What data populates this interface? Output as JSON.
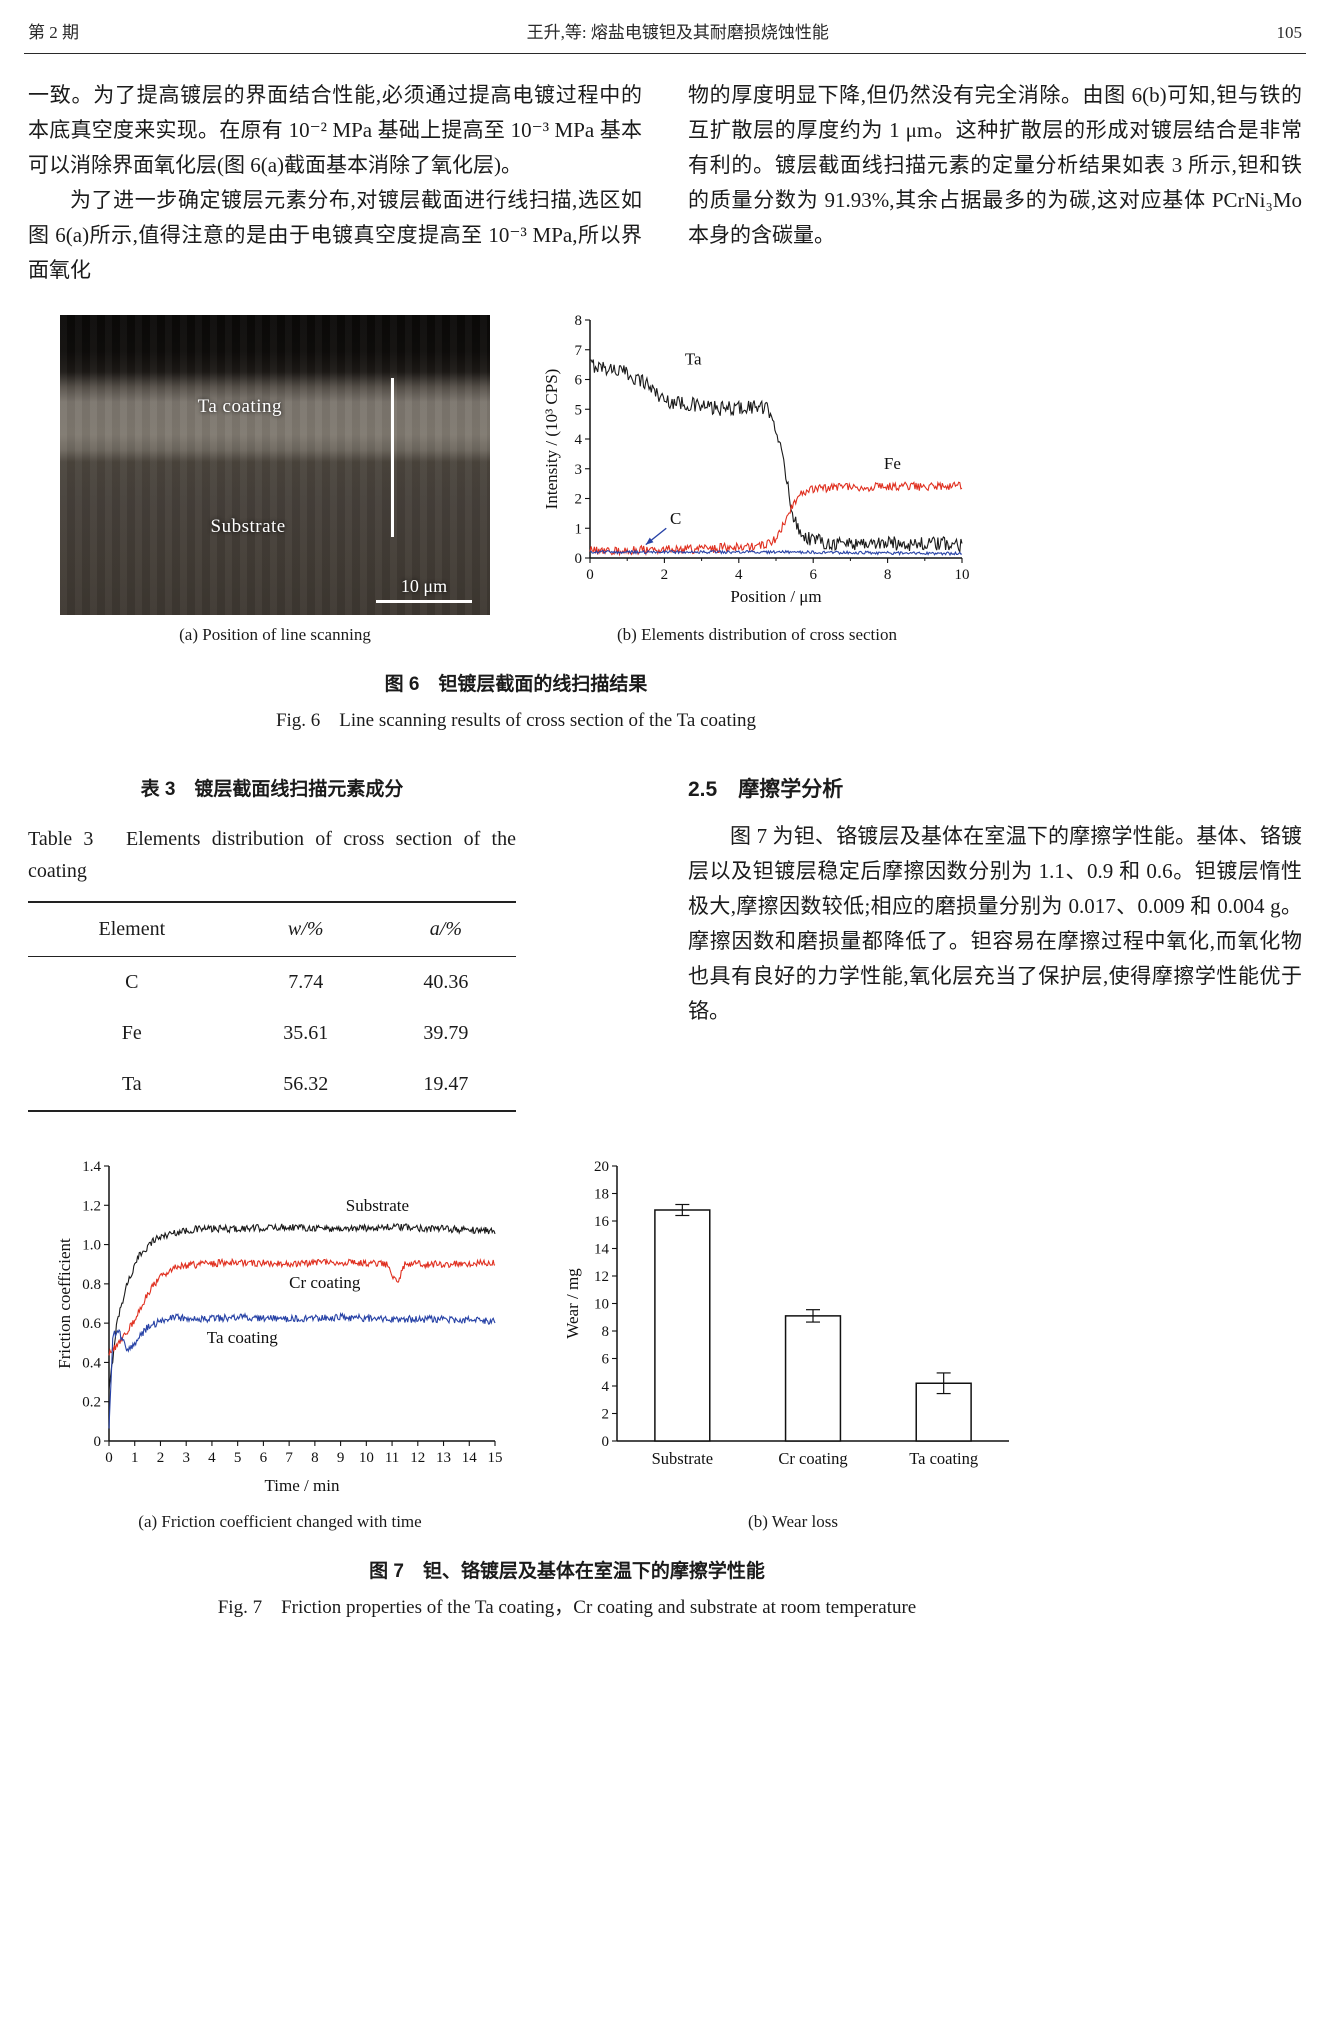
{
  "header": {
    "issue": "第 2 期",
    "title": "王升,等: 熔盐电镀钽及其耐磨损烧蚀性能",
    "page_number": "105"
  },
  "body": {
    "left_para1": "一致。为了提高镀层的界面结合性能,必须通过提高电镀过程中的本底真空度来实现。在原有 10⁻² MPa 基础上提高至 10⁻³ MPa 基本可以消除界面氧化层(图 6(a)截面基本消除了氧化层)。",
    "left_para2": "为了进一步确定镀层元素分布,对镀层截面进行线扫描,选区如图 6(a)所示,值得注意的是由于电镀真空度提高至 10⁻³ MPa,所以界面氧化",
    "right_para1": "物的厚度明显下降,但仍然没有完全消除。由图 6(b)可知,钽与铁的互扩散层的厚度约为 1 μm。这种扩散层的形成对镀层结合是非常有利的。镀层截面线扫描元素的定量分析结果如表 3 所示,钽和铁的质量分数为 91.93%,其余占据最多的为碳,这对应基体 PCrNi₃Mo 本身的含碳量。"
  },
  "figure6": {
    "sem": {
      "coating_label": "Ta coating",
      "substrate_label": "Substrate",
      "scale_label": "10 μm"
    },
    "caption_a": "(a) Position of line scanning",
    "caption_b": "(b) Elements distribution of cross section",
    "caption_cn": "图 6　钽镀层截面的线扫描结果",
    "caption_en": "Fig. 6　Line scanning results of cross section of the Ta coating"
  },
  "table3": {
    "title_cn": "表 3　镀层截面线扫描元素成分",
    "title_en": "Table 3　Elements distribution of cross section of the coating",
    "headers": [
      "Element",
      "w/%",
      "a/%"
    ],
    "rows": [
      {
        "element": "C",
        "w": "7.74",
        "a": "40.36"
      },
      {
        "element": "Fe",
        "w": "35.61",
        "a": "39.79"
      },
      {
        "element": "Ta",
        "w": "56.32",
        "a": "19.47"
      }
    ]
  },
  "section25": {
    "heading": "2.5　摩擦学分析",
    "para": "图 7 为钽、铬镀层及基体在室温下的摩擦学性能。基体、铬镀层以及钽镀层稳定后摩擦因数分别为 1.1、0.9 和 0.6。钽镀层惰性极大,摩擦因数较低;相应的磨损量分别为 0.017、0.009 和 0.004 g。摩擦因数和磨损量都降低了。钽容易在摩擦过程中氧化,而氧化物也具有良好的力学性能,氧化层充当了保护层,使得摩擦学性能优于铬。"
  },
  "figure7": {
    "caption_a": "(a) Friction coefficient changed with time",
    "caption_b": "(b) Wear loss",
    "caption_cn": "图 7　钽、铬镀层及基体在室温下的摩擦学性能",
    "caption_en": "Fig. 7　Friction properties of the Ta coating，Cr coating and substrate at room temperature"
  },
  "chart_data": [
    {
      "id": "fig6b",
      "type": "line",
      "xlabel": "Position / μm",
      "ylabel": "Intensity / (10³ CPS)",
      "xlim": [
        0,
        10
      ],
      "ylim": [
        0,
        8
      ],
      "xticks": [
        0,
        2,
        4,
        6,
        8,
        10
      ],
      "xtick_labels": [
        "0",
        "2",
        "4",
        "6",
        "8",
        "10"
      ],
      "xticks_minor": [
        1,
        3,
        5,
        7,
        9
      ],
      "yticks": [
        0,
        1,
        2,
        3,
        4,
        5,
        6,
        7,
        8
      ],
      "ytick_labels": [
        "0",
        "1",
        "2",
        "3",
        "4",
        "5",
        "6",
        "7",
        "8"
      ],
      "series": [
        {
          "name": "Ta",
          "color": "#1a1a1a",
          "noise": 0.25,
          "points": [
            [
              0,
              6.5
            ],
            [
              0.8,
              6.3
            ],
            [
              1.5,
              5.9
            ],
            [
              2,
              5.3
            ],
            [
              2.5,
              5.2
            ],
            [
              3.5,
              5.0
            ],
            [
              4.5,
              5.1
            ],
            [
              4.9,
              4.9
            ],
            [
              5.2,
              3.2
            ],
            [
              5.5,
              1.2
            ],
            [
              5.8,
              0.7
            ],
            [
              6.5,
              0.5
            ],
            [
              8,
              0.5
            ],
            [
              10,
              0.45
            ]
          ]
        },
        {
          "name": "Fe",
          "color": "#e03020",
          "noise": 0.15,
          "points": [
            [
              0,
              0.25
            ],
            [
              3,
              0.3
            ],
            [
              4.5,
              0.4
            ],
            [
              5.0,
              0.6
            ],
            [
              5.3,
              1.4
            ],
            [
              5.6,
              2.1
            ],
            [
              5.9,
              2.3
            ],
            [
              6.5,
              2.35
            ],
            [
              8,
              2.4
            ],
            [
              10,
              2.4
            ]
          ]
        },
        {
          "name": "C",
          "color": "#2742a6",
          "noise": 0.05,
          "points": [
            [
              0,
              0.2
            ],
            [
              5,
              0.2
            ],
            [
              10,
              0.15
            ]
          ]
        }
      ],
      "labels": [
        {
          "text": "Ta",
          "x": 2.55,
          "y": 6.5
        },
        {
          "text": "Fe",
          "x": 7.9,
          "y": 3.0
        },
        {
          "text": "C",
          "x": 2.15,
          "y": 1.15
        }
      ],
      "arrows": [
        {
          "from": [
            2.05,
            1.0
          ],
          "to": [
            1.5,
            0.45
          ],
          "color": "#2742a6"
        }
      ]
    },
    {
      "id": "fig7a",
      "type": "line",
      "xlabel": "Time / min",
      "ylabel": "Friction coefficient",
      "xlim": [
        0,
        15
      ],
      "ylim": [
        0,
        1.4
      ],
      "xticks": [
        0,
        1,
        2,
        3,
        4,
        5,
        6,
        7,
        8,
        9,
        10,
        11,
        12,
        13,
        14,
        15
      ],
      "xtick_labels": [
        "0",
        "1",
        "2",
        "3",
        "4",
        "5",
        "6",
        "7",
        "8",
        "9",
        "10",
        "11",
        "12",
        "13",
        "14",
        "15"
      ],
      "yticks": [
        0,
        0.2,
        0.4,
        0.6,
        0.8,
        1.0,
        1.2,
        1.4
      ],
      "ytick_labels": [
        "0",
        "0.2",
        "0.4",
        "0.6",
        "0.8",
        "1.0",
        "1.2",
        "1.4"
      ],
      "series": [
        {
          "name": "Substrate",
          "color": "#1a1a1a",
          "noise": 0.018,
          "points": [
            [
              0,
              0.25
            ],
            [
              0.3,
              0.6
            ],
            [
              0.7,
              0.8
            ],
            [
              1.2,
              0.95
            ],
            [
              1.8,
              1.03
            ],
            [
              2.5,
              1.06
            ],
            [
              3.5,
              1.08
            ],
            [
              5,
              1.08
            ],
            [
              7,
              1.09
            ],
            [
              9,
              1.08
            ],
            [
              11,
              1.09
            ],
            [
              13,
              1.08
            ],
            [
              15,
              1.07
            ]
          ]
        },
        {
          "name": "Cr coating",
          "color": "#e03020",
          "noise": 0.018,
          "points": [
            [
              0,
              0.44
            ],
            [
              0.5,
              0.52
            ],
            [
              1,
              0.62
            ],
            [
              1.5,
              0.75
            ],
            [
              2,
              0.84
            ],
            [
              2.7,
              0.89
            ],
            [
              3.5,
              0.9
            ],
            [
              5,
              0.91
            ],
            [
              7,
              0.9
            ],
            [
              9,
              0.91
            ],
            [
              10.8,
              0.9
            ],
            [
              11.2,
              0.8
            ],
            [
              11.5,
              0.9
            ],
            [
              13,
              0.9
            ],
            [
              15,
              0.91
            ]
          ]
        },
        {
          "name": "Ta coating",
          "color": "#2742a6",
          "noise": 0.018,
          "points": [
            [
              0,
              0.05
            ],
            [
              0.15,
              0.55
            ],
            [
              0.4,
              0.55
            ],
            [
              0.7,
              0.46
            ],
            [
              1,
              0.5
            ],
            [
              1.5,
              0.58
            ],
            [
              2,
              0.61
            ],
            [
              2.5,
              0.63
            ],
            [
              3.5,
              0.62
            ],
            [
              5,
              0.63
            ],
            [
              7,
              0.62
            ],
            [
              9,
              0.63
            ],
            [
              11,
              0.62
            ],
            [
              13,
              0.62
            ],
            [
              15,
              0.61
            ]
          ]
        }
      ],
      "labels": [
        {
          "text": "Substrate",
          "x": 9.2,
          "y": 1.17
        },
        {
          "text": "Cr coating",
          "x": 7.0,
          "y": 0.78
        },
        {
          "text": "Ta coating",
          "x": 3.8,
          "y": 0.5
        }
      ],
      "arrows": []
    },
    {
      "id": "fig7b",
      "type": "bar",
      "xlabel": "",
      "ylabel": "Wear / mg",
      "categories": [
        "Substrate",
        "Cr coating",
        "Ta coating"
      ],
      "values": [
        16.8,
        9.1,
        4.2
      ],
      "errors": [
        0.4,
        0.45,
        0.75
      ],
      "ylim": [
        0,
        20
      ],
      "yticks": [
        0,
        2,
        4,
        6,
        8,
        10,
        12,
        14,
        16,
        18,
        20
      ],
      "ytick_labels": [
        "0",
        "2",
        "4",
        "6",
        "8",
        "10",
        "12",
        "14",
        "16",
        "18",
        "20"
      ]
    }
  ]
}
